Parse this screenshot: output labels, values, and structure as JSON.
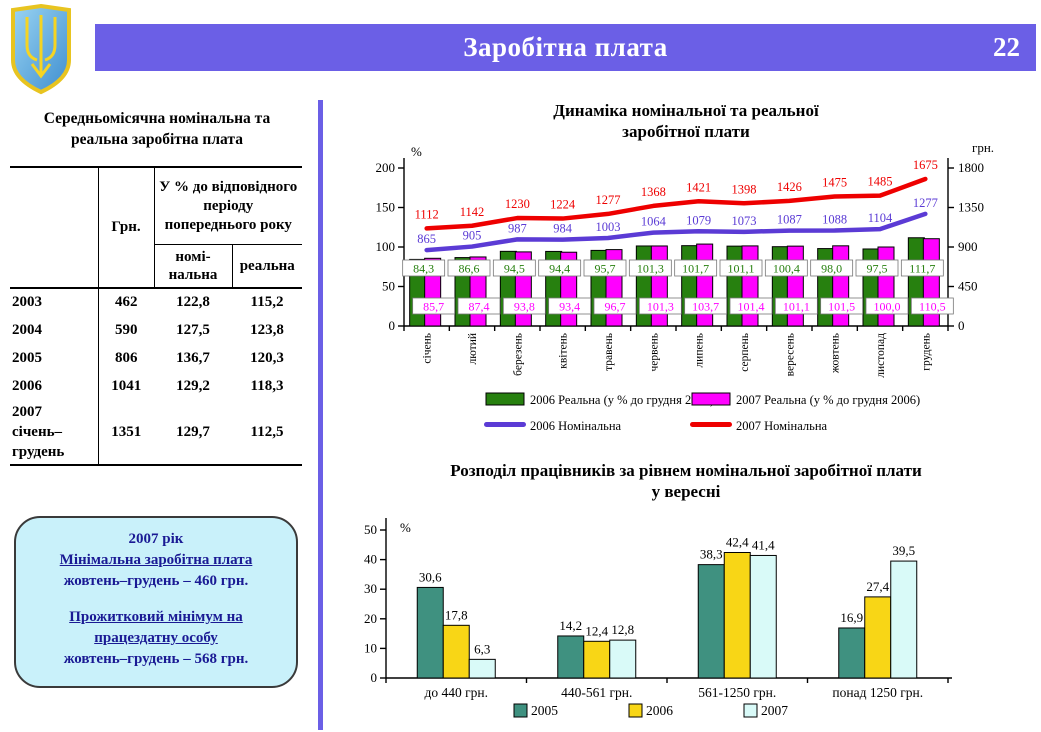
{
  "header": {
    "title": "Заробітна плата",
    "page_number": "22"
  },
  "left": {
    "table_title": "Середньомісячна номінальна та\nреальна  заробітна плата",
    "table": {
      "col_hrn": "Грн.",
      "col_pct": "У % до відповідного періоду попереднього року",
      "col_nominal": "номі-\nнальна",
      "col_real": "реальна",
      "rows": [
        {
          "year": "2003",
          "hrn": "462",
          "nominal": "122,8",
          "real": "115,2"
        },
        {
          "year": "2004",
          "hrn": "590",
          "nominal": "127,5",
          "real": "123,8"
        },
        {
          "year": "2005",
          "hrn": "806",
          "nominal": "136,7",
          "real": "120,3"
        },
        {
          "year": "2006",
          "hrn": "1041",
          "nominal": "129,2",
          "real": "118,3"
        },
        {
          "year": "2007\nсічень–\nгрудень",
          "hrn": "1351",
          "nominal": "129,7",
          "real": "112,5"
        }
      ]
    },
    "infobox": {
      "title": "2007 рік",
      "link1": "Мінімальна заробітна плата",
      "value1": "жовтень–грудень – 460 грн.",
      "link2": "Прожитковий мінімум на працездатну особу",
      "value2": "жовтень–грудень – 568 грн."
    }
  },
  "colors": {
    "header_bar": "#6B5FE6",
    "bar_2006_real": "#27800F",
    "bar_2007_real": "#FF00FF",
    "line_2006_nominal": "#5B3BD5",
    "line_2007_nominal": "#EE0000",
    "bar_2005": "#3F9180",
    "bar_2006": "#F8D616",
    "bar_2007": "#D9FAF8",
    "infobox_bg": "#C9F1FA",
    "infobox_text": "#1A1A94"
  },
  "chart_data": [
    {
      "type": "combo-bar-line",
      "title": "Динаміка номінальної та реальної\nзаробітної плати",
      "categories": [
        "січень",
        "лютий",
        "березень",
        "квітень",
        "травень",
        "червень",
        "липень",
        "серпень",
        "вересень",
        "жовтень",
        "листопад",
        "грудень"
      ],
      "left_axis": {
        "label": "%",
        "ticks": [
          0,
          50,
          100,
          150,
          200
        ],
        "max": 200
      },
      "right_axis": {
        "label": "грн.",
        "ticks": [
          0,
          450,
          900,
          1350,
          1800
        ],
        "max": 1800
      },
      "legend_position": "bottom",
      "series": [
        {
          "name": "2006 Реальна (у % до грудня 2005)",
          "type": "bar",
          "axis": "left",
          "color": "#27800F",
          "labels": [
            "84,3",
            "86,6",
            "94,5",
            "94,4",
            "95,7",
            "101,3",
            "101,7",
            "101,1",
            "100,4",
            "98,0",
            "97,5",
            "111,7"
          ]
        },
        {
          "name": "2007 Реальна (у % до грудня 2006)",
          "type": "bar",
          "axis": "left",
          "color": "#FF00FF",
          "labels": [
            "85,7",
            "87,4",
            "93,8",
            "93,4",
            "96,7",
            "101,3",
            "103,7",
            "101,4",
            "101,1",
            "101,5",
            "100,0",
            "110,5"
          ]
        },
        {
          "name": "2006 Номінальна",
          "type": "line",
          "axis": "right",
          "color": "#5B3BD5",
          "values": [
            865,
            905,
            987,
            984,
            1003,
            1064,
            1079,
            1073,
            1087,
            1088,
            1104,
            1277
          ]
        },
        {
          "name": "2007 Номінальна",
          "type": "line",
          "axis": "right",
          "color": "#EE0000",
          "values": [
            1112,
            1142,
            1230,
            1224,
            1277,
            1368,
            1421,
            1398,
            1426,
            1475,
            1485,
            1675
          ]
        }
      ]
    },
    {
      "type": "bar",
      "title": "Розподіл працівників за рівнем номінальної заробітної плати\nу вересні",
      "categories": [
        "до 440 грн.",
        "440-561 грн.",
        "561-1250 грн.",
        "понад 1250 грн."
      ],
      "ylabel": "%",
      "ylim": [
        0,
        50
      ],
      "ticks": [
        0,
        10,
        20,
        30,
        40,
        50
      ],
      "legend_position": "bottom",
      "series": [
        {
          "name": "2005",
          "color": "#3F9180",
          "labels": [
            "30,6",
            "14,2",
            "38,3",
            "16,9"
          ]
        },
        {
          "name": "2006",
          "color": "#F8D616",
          "labels": [
            "17,8",
            "12,4",
            "42,4",
            "27,4"
          ]
        },
        {
          "name": "2007",
          "color": "#D9FAF8",
          "labels": [
            "6,3",
            "12,8",
            "41,4",
            "39,5"
          ]
        }
      ]
    }
  ]
}
